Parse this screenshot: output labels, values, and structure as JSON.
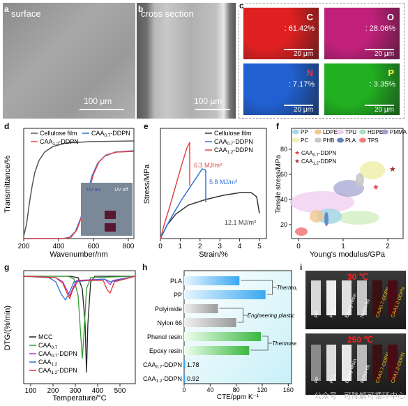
{
  "labels": {
    "a": "a",
    "b": "b",
    "c": "c",
    "d": "d",
    "e": "e",
    "f": "f",
    "g": "g",
    "h": "h",
    "i": "i"
  },
  "panel_a": {
    "title": "surface",
    "scale": "100 μm"
  },
  "panel_b": {
    "title": "cross section",
    "scale": "100 μm"
  },
  "panel_c": {
    "maps": [
      {
        "element": "C",
        "value": ": 61.42%",
        "scale": "20 μm",
        "color": "#e02020",
        "elcolor": "#ffffff"
      },
      {
        "element": "O",
        "value": ": 28.06%",
        "scale": "20 μm",
        "color": "#c0207a",
        "elcolor": "#ffffff"
      },
      {
        "element": "N",
        "value": ": 7.17%",
        "scale": "20 μm",
        "color": "#2060d0",
        "elcolor": "#ff3030"
      },
      {
        "element": "P",
        "value": ": 3.35%",
        "scale": "20 μm",
        "color": "#20b020",
        "elcolor": "#ffff40"
      }
    ]
  },
  "panel_d": {
    "ylabel": "Transmittance/%",
    "xlabel": "Wavenumber/nm",
    "xticks": [
      "200",
      "400",
      "600",
      "800"
    ],
    "legend": [
      "Cellulose film",
      "CAA0.7-DDPN",
      "CAA1.2-DDPN"
    ],
    "legend_main": [
      "Cellulose film",
      "CAA",
      "CAA"
    ],
    "legend_sub": [
      "",
      "0.7",
      "1.2"
    ],
    "legend_suffix": [
      "",
      "-DDPN",
      "-DDPN"
    ],
    "inset": {
      "uv_on": "UV on",
      "uv_off": "UV off"
    }
  },
  "panel_e": {
    "ylabel": "Stress/MPa",
    "xlabel": "Strain/%",
    "xticks": [
      "0",
      "1",
      "2",
      "3",
      "4",
      "5"
    ],
    "legend_main": [
      "Cellulose film",
      "CAA",
      "CAA"
    ],
    "legend_sub": [
      "",
      "0.7",
      "1.2"
    ],
    "legend_suffix": [
      "",
      "-DDPN",
      "-DDPN"
    ],
    "annotations": [
      "6.3 MJ/m³",
      "5.8 MJ/m³",
      "12.1 MJ/m³"
    ]
  },
  "panel_f": {
    "ylabel": "Tensile stress/MPa",
    "xlabel": "Young's modulus/GPa",
    "yticks": [
      "20",
      "40",
      "60",
      "80"
    ],
    "xticks": [
      "0",
      "1",
      "2"
    ],
    "legend": [
      "PP",
      "LDPE",
      "TPU",
      "HDPE",
      "PMMA",
      "PC",
      "PHB",
      "PLA",
      "TPS"
    ],
    "star_main": [
      "CAA",
      "CAA"
    ],
    "star_sub": [
      "0.7",
      "1.2"
    ],
    "star_suffix": [
      "-DDPN",
      "-DDPN"
    ]
  },
  "panel_g": {
    "ylabel": "DTG/(%/min)",
    "xlabel": "Temperature/°C",
    "xticks": [
      "100",
      "200",
      "300",
      "400",
      "500"
    ],
    "legend_main": [
      "MCC",
      "CAA",
      "CAA",
      "CAA",
      "CAA"
    ],
    "legend_sub": [
      "",
      "0.7",
      "0.7",
      "1.2",
      "1.2"
    ],
    "legend_suffix": [
      "",
      "",
      "-DDPN",
      "",
      "-DDPN"
    ]
  },
  "panel_h": {
    "xlabel": "CTE/ppm K⁻¹",
    "xticks": [
      "0",
      "40",
      "80",
      "120",
      "160"
    ],
    "bars": [
      {
        "label": "PLA",
        "value": 85,
        "group": "thermoplastic"
      },
      {
        "label": "PP",
        "value": 125,
        "group": "thermoplastic"
      },
      {
        "label": "Polyimide",
        "value": 52,
        "group": "engineering"
      },
      {
        "label": "Nylon 66",
        "value": 80,
        "group": "engineering"
      },
      {
        "label": "Phenol resin",
        "value": 118,
        "group": "thermoset"
      },
      {
        "label": "Epoxy resin",
        "value": 100,
        "group": "thermoset"
      }
    ],
    "ours": [
      {
        "label": "CAA0.7-DDPN",
        "main": "CAA",
        "sub": "0.7",
        "suffix": "-DDPN",
        "value": "1.78"
      },
      {
        "label": "CAA1.2-DDPN",
        "main": "CAA",
        "sub": "1.2",
        "suffix": "-DDPN",
        "value": "0.92"
      }
    ],
    "groups": [
      "Thermoplastic",
      "Engineering plastic",
      "Thermoset"
    ]
  },
  "panel_i": {
    "top_temp": "30 ℃",
    "bottom_temp": "250 ℃",
    "samples": [
      "PP",
      "PLA",
      "Epoxy resin",
      "Nylon 66",
      "CAA0.7-DDPN",
      "CAA1.2-DDPN"
    ]
  },
  "watermark": "公众号 · 可降解可循环中心"
}
